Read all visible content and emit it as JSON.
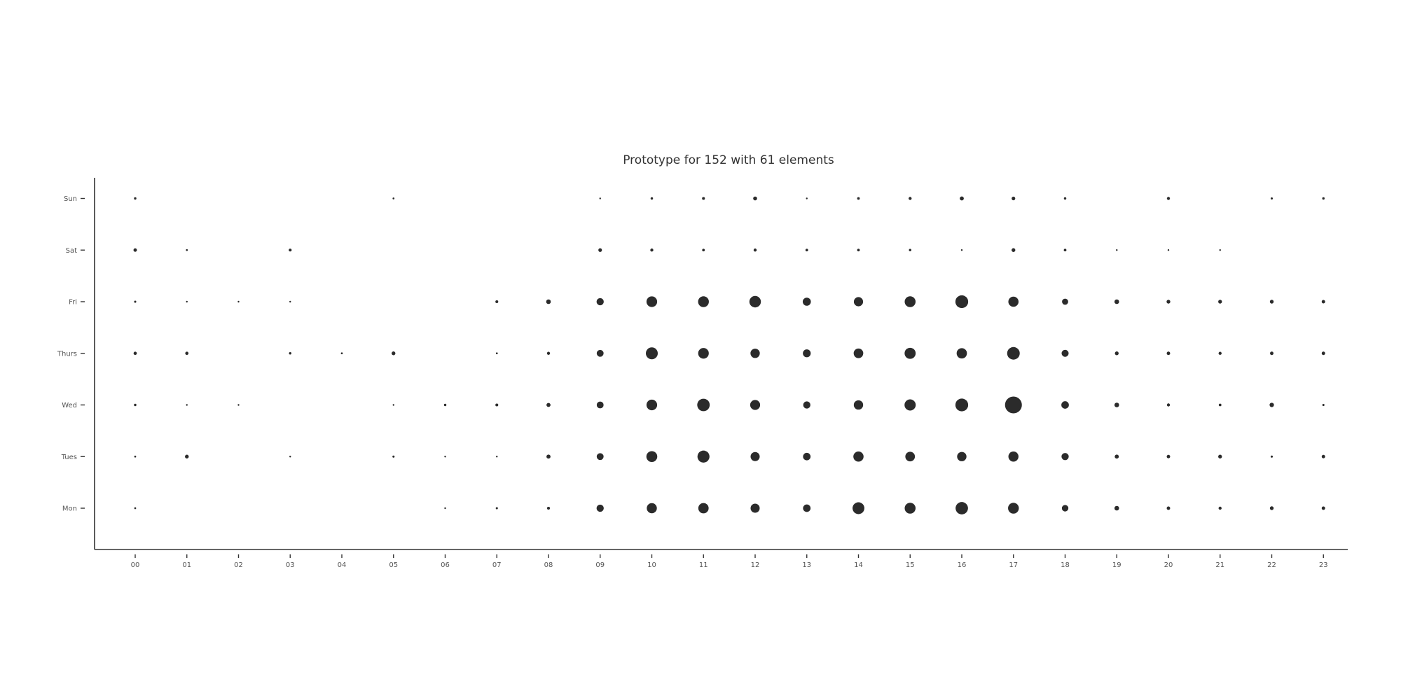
{
  "chart_data": {
    "type": "scatter",
    "title": "Prototype for 152 with 61 elements",
    "xlabel": "",
    "ylabel": "",
    "x_ticks": [
      "00",
      "01",
      "02",
      "03",
      "04",
      "05",
      "06",
      "07",
      "08",
      "09",
      "10",
      "11",
      "12",
      "13",
      "14",
      "15",
      "16",
      "17",
      "18",
      "19",
      "20",
      "21",
      "22",
      "23"
    ],
    "y_ticks": [
      "Mon",
      "Tues",
      "Wed",
      "Thurs",
      "Fri",
      "Sat",
      "Sun"
    ],
    "grid": false,
    "legend": "none",
    "marker_color": "#2b2b2b",
    "size_scale": "marker area proportional to value",
    "max_value": 14,
    "series": [
      {
        "day": "Mon",
        "values": [
          0.15,
          0,
          0,
          0,
          0,
          0,
          0.12,
          0.2,
          0.35,
          2.2,
          4.3,
          4.5,
          3.5,
          2.4,
          5.9,
          5.0,
          6.5,
          4.9,
          1.8,
          0.9,
          0.5,
          0.4,
          0.6,
          0.5
        ]
      },
      {
        "day": "Tues",
        "values": [
          0.15,
          0.6,
          0,
          0.12,
          0,
          0.2,
          0.12,
          0.12,
          0.7,
          2.0,
          5.0,
          6.1,
          3.5,
          2.4,
          4.4,
          3.9,
          3.7,
          4.3,
          2.2,
          0.7,
          0.5,
          0.6,
          0.2,
          0.5
        ]
      },
      {
        "day": "Wed",
        "values": [
          0.25,
          0.1,
          0.1,
          0,
          0,
          0.12,
          0.25,
          0.35,
          0.7,
          2.0,
          4.8,
          6.6,
          4.2,
          2.2,
          3.7,
          5.3,
          6.9,
          12.0,
          2.4,
          0.9,
          0.4,
          0.3,
          0.8,
          0.2
        ]
      },
      {
        "day": "Thurs",
        "values": [
          0.45,
          0.45,
          0,
          0.25,
          0.15,
          0.6,
          0,
          0.15,
          0.4,
          2.0,
          6.0,
          4.8,
          3.7,
          2.6,
          3.9,
          5.2,
          4.5,
          6.7,
          2.1,
          0.6,
          0.5,
          0.4,
          0.5,
          0.5
        ]
      },
      {
        "day": "Fri",
        "values": [
          0.2,
          0.12,
          0.08,
          0.12,
          0,
          0,
          0,
          0.35,
          0.9,
          2.2,
          4.8,
          4.9,
          5.6,
          2.8,
          3.6,
          5.0,
          6.9,
          4.4,
          1.6,
          0.9,
          0.6,
          0.6,
          0.6,
          0.5
        ]
      },
      {
        "day": "Sat",
        "values": [
          0.5,
          0.15,
          0,
          0.35,
          0,
          0,
          0,
          0,
          0,
          0.55,
          0.4,
          0.3,
          0.4,
          0.3,
          0.3,
          0.25,
          0.1,
          0.6,
          0.3,
          0.12,
          0.08,
          0.12,
          0,
          0
        ]
      },
      {
        "day": "Sun",
        "values": [
          0.25,
          0,
          0,
          0,
          0,
          0.15,
          0,
          0,
          0,
          0.12,
          0.25,
          0.35,
          0.65,
          0.1,
          0.3,
          0.4,
          0.7,
          0.55,
          0.25,
          0,
          0.4,
          0,
          0.2,
          0.25
        ]
      }
    ]
  }
}
